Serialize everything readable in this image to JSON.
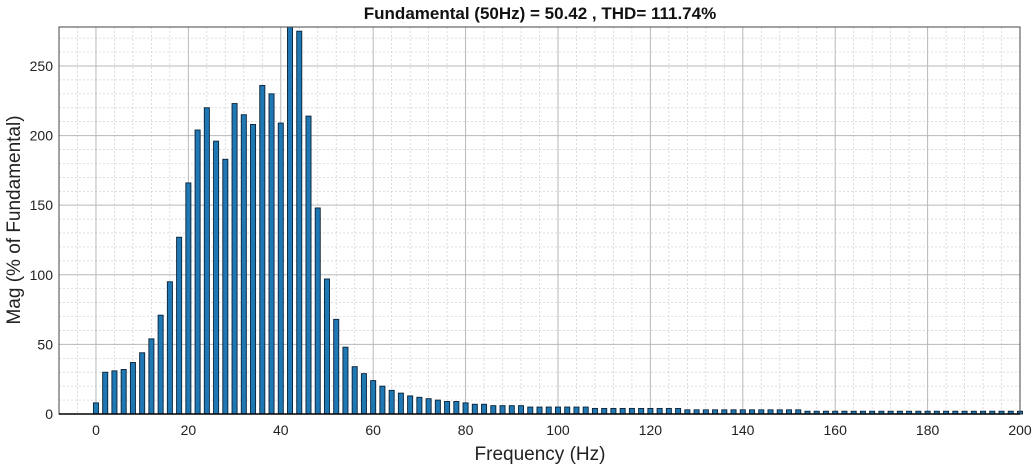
{
  "chart_data": {
    "type": "bar",
    "title": "Fundamental (50Hz) = 50.42 , THD= 111.74%",
    "xlabel": "Frequency (Hz)",
    "ylabel": "Mag (% of Fundamental)",
    "xlim": [
      -8,
      200
    ],
    "ylim": [
      0,
      278
    ],
    "x_ticks": [
      "0",
      "20",
      "40",
      "60",
      "80",
      "100",
      "120",
      "140",
      "160",
      "180",
      "200"
    ],
    "y_ticks": [
      "0",
      "50",
      "100",
      "150",
      "200",
      "250"
    ],
    "grid": true,
    "minor_grid": true,
    "bar_color": "#1f77b4",
    "x": [
      0,
      2,
      4,
      6,
      8,
      10,
      12,
      14,
      16,
      18,
      20,
      22,
      24,
      26,
      28,
      30,
      32,
      34,
      36,
      38,
      40,
      42,
      44,
      46,
      48,
      50,
      52,
      54,
      56,
      58,
      60,
      62,
      64,
      66,
      68,
      70,
      72,
      74,
      76,
      78,
      80,
      82,
      84,
      86,
      88,
      90,
      92,
      94,
      96,
      98,
      100,
      102,
      104,
      106,
      108,
      110,
      112,
      114,
      116,
      118,
      120,
      122,
      124,
      126,
      128,
      130,
      132,
      134,
      136,
      138,
      140,
      142,
      144,
      146,
      148,
      150,
      152,
      154,
      156,
      158,
      160,
      162,
      164,
      166,
      168,
      170,
      172,
      174,
      176,
      178,
      180,
      182,
      184,
      186,
      188,
      190,
      192,
      194,
      196,
      198,
      200
    ],
    "values": [
      8,
      30,
      31,
      32,
      37,
      44,
      54,
      71,
      95,
      127,
      166,
      204,
      220,
      196,
      183,
      223,
      215,
      208,
      236,
      230,
      209,
      280,
      275,
      214,
      148,
      97,
      68,
      48,
      34,
      29,
      24,
      20,
      17,
      15,
      13,
      12,
      11,
      10,
      9,
      9,
      8,
      7,
      7,
      6,
      6,
      6,
      6,
      5,
      5,
      5,
      5,
      5,
      5,
      5,
      4,
      4,
      4,
      4,
      4,
      4,
      4,
      4,
      4,
      4,
      3,
      3,
      3,
      3,
      3,
      3,
      3,
      3,
      3,
      3,
      3,
      3,
      3,
      2,
      2,
      2,
      2,
      2,
      2,
      2,
      2,
      2,
      2,
      2,
      2,
      2,
      2,
      2,
      2,
      2,
      2,
      2,
      2,
      2,
      2,
      2,
      2
    ]
  }
}
